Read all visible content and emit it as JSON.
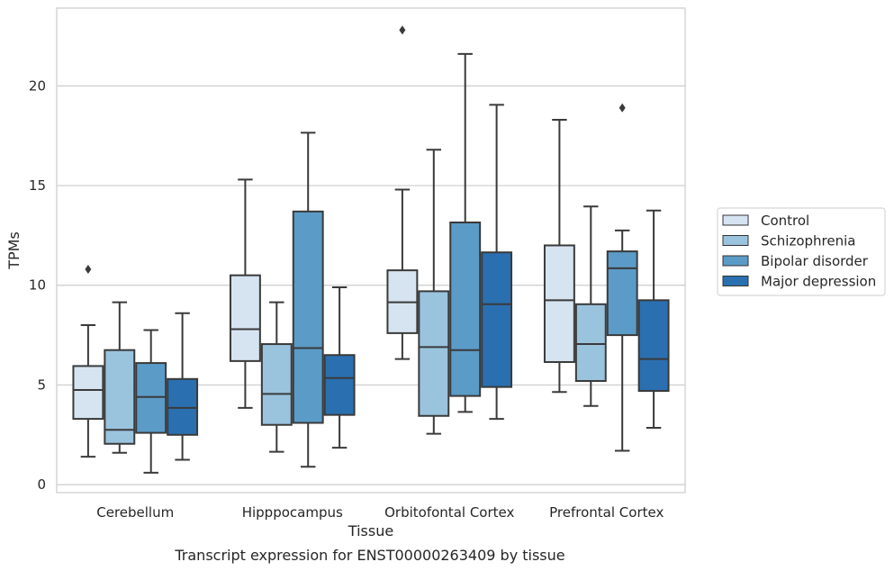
{
  "chart_data": {
    "type": "box",
    "title": "",
    "caption": "Transcript expression for ENST00000263409 by tissue",
    "xlabel": "Tissue",
    "ylabel": "TPMs",
    "ylim": [
      -0.4,
      23.9
    ],
    "yticks": [
      0,
      5,
      10,
      15,
      20
    ],
    "grid": "horizontal",
    "legend_position": "right",
    "categories": [
      "Cerebellum",
      "Hipppocampus",
      "Orbitofontal Cortex",
      "Prefrontal Cortex"
    ],
    "series": [
      {
        "name": "Control",
        "color": "#d6e4f2",
        "boxes": [
          {
            "whisker_low": 1.4,
            "q1": 3.3,
            "median": 4.75,
            "q3": 5.95,
            "whisker_high": 8.0,
            "outliers": [
              10.8
            ]
          },
          {
            "whisker_low": 3.85,
            "q1": 6.2,
            "median": 7.8,
            "q3": 10.5,
            "whisker_high": 15.3,
            "outliers": []
          },
          {
            "whisker_low": 6.3,
            "q1": 7.6,
            "median": 9.15,
            "q3": 10.75,
            "whisker_high": 14.8,
            "outliers": [
              22.8
            ]
          },
          {
            "whisker_low": 4.65,
            "q1": 6.15,
            "median": 9.25,
            "q3": 12.0,
            "whisker_high": 18.3,
            "outliers": []
          }
        ]
      },
      {
        "name": "Schizophrenia",
        "color": "#9ac3de",
        "boxes": [
          {
            "whisker_low": 1.6,
            "q1": 2.05,
            "median": 2.75,
            "q3": 6.75,
            "whisker_high": 9.15,
            "outliers": []
          },
          {
            "whisker_low": 1.65,
            "q1": 3.0,
            "median": 4.55,
            "q3": 7.05,
            "whisker_high": 9.15,
            "outliers": []
          },
          {
            "whisker_low": 2.55,
            "q1": 3.45,
            "median": 6.9,
            "q3": 9.7,
            "whisker_high": 16.8,
            "outliers": []
          },
          {
            "whisker_low": 3.95,
            "q1": 5.2,
            "median": 7.05,
            "q3": 9.05,
            "whisker_high": 13.95,
            "outliers": []
          }
        ]
      },
      {
        "name": "Bipolar disorder",
        "color": "#5b9bc7",
        "boxes": [
          {
            "whisker_low": 0.6,
            "q1": 2.6,
            "median": 4.4,
            "q3": 6.1,
            "whisker_high": 7.75,
            "outliers": []
          },
          {
            "whisker_low": 0.9,
            "q1": 3.1,
            "median": 6.85,
            "q3": 13.7,
            "whisker_high": 17.65,
            "outliers": []
          },
          {
            "whisker_low": 3.65,
            "q1": 4.45,
            "median": 6.75,
            "q3": 13.15,
            "whisker_high": 21.6,
            "outliers": []
          },
          {
            "whisker_low": 1.7,
            "q1": 7.5,
            "median": 10.85,
            "q3": 11.7,
            "whisker_high": 12.75,
            "outliers": [
              18.9
            ]
          }
        ]
      },
      {
        "name": "Major depression",
        "color": "#2a6fb0",
        "boxes": [
          {
            "whisker_low": 1.25,
            "q1": 2.5,
            "median": 3.85,
            "q3": 5.3,
            "whisker_high": 8.6,
            "outliers": []
          },
          {
            "whisker_low": 1.85,
            "q1": 3.5,
            "median": 5.35,
            "q3": 6.5,
            "whisker_high": 9.9,
            "outliers": []
          },
          {
            "whisker_low": 3.3,
            "q1": 4.9,
            "median": 9.05,
            "q3": 11.65,
            "whisker_high": 19.05,
            "outliers": []
          },
          {
            "whisker_low": 2.85,
            "q1": 4.7,
            "median": 6.3,
            "q3": 9.25,
            "whisker_high": 13.75,
            "outliers": []
          }
        ]
      }
    ]
  }
}
